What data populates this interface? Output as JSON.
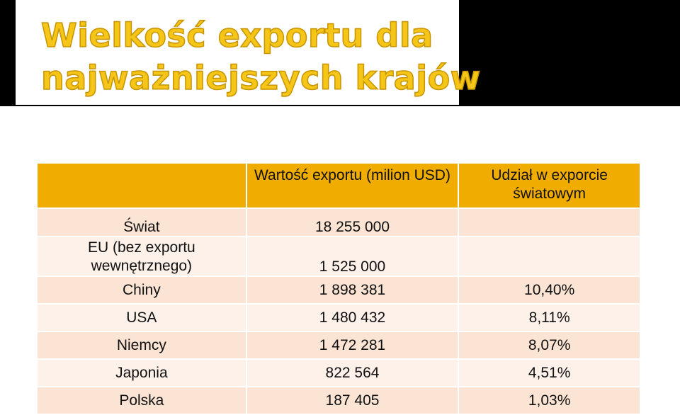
{
  "title": {
    "line1": "Wielkość exportu dla",
    "line2": "najważniejszych krajów"
  },
  "table": {
    "headers": [
      "",
      "Wartość exportu (milion USD)",
      "Udział w exporcie światowym"
    ],
    "rows": [
      {
        "country": "Świat",
        "value": "18 255 000",
        "share": ""
      },
      {
        "country": "EU (bez exportu wewnętrznego)",
        "value": "1 525 000",
        "share": ""
      },
      {
        "country": "Chiny",
        "value": "1 898 381",
        "share": "10,40%"
      },
      {
        "country": "USA",
        "value": "1 480 432",
        "share": "8,11%"
      },
      {
        "country": "Niemcy",
        "value": "1 472 281",
        "share": "8,07%"
      },
      {
        "country": "Japonia",
        "value": "822 564",
        "share": "4,51%"
      },
      {
        "country": "Polska",
        "value": "187 405",
        "share": "1,03%"
      }
    ]
  },
  "colors": {
    "title_fill": "#f5c518",
    "header_bg": "#f0ad00",
    "row_band_1": "#fbe4d4",
    "row_band_2": "#fdf1ea"
  }
}
